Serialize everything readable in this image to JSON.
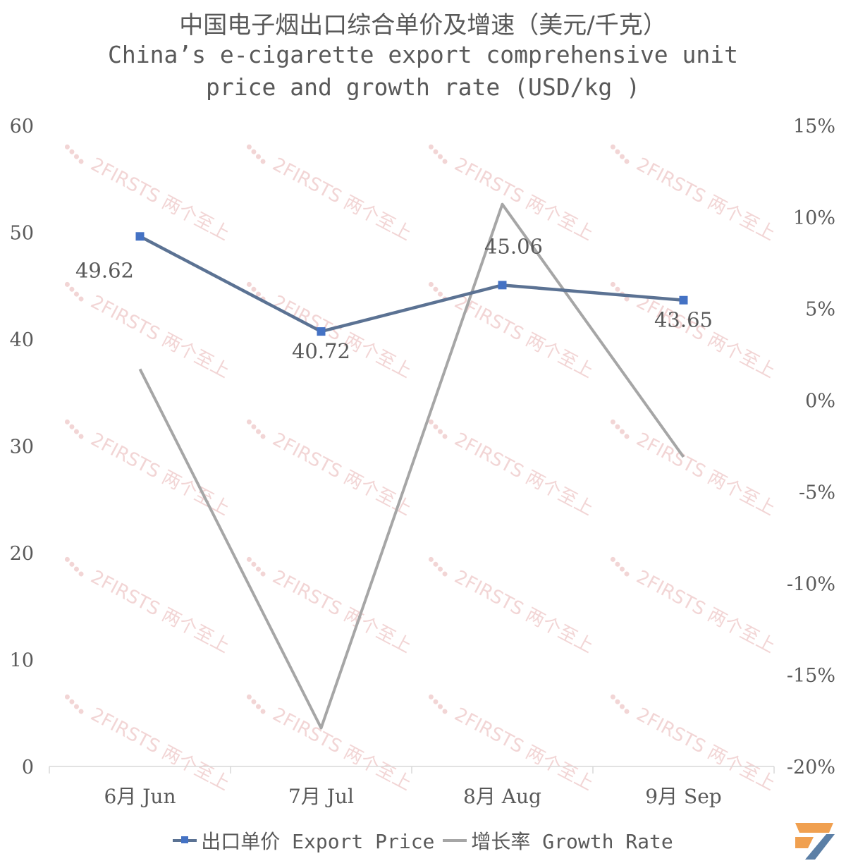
{
  "title": {
    "cn": "中国电子烟出口综合单价及增速（美元/千克）",
    "en_line1": "China’s e-cigarette export comprehensive unit",
    "en_line2": "price and growth rate (USD/kg )"
  },
  "watermark": {
    "text": "2FIRSTS 两个至上"
  },
  "colors": {
    "price": "#4472C4",
    "price_line": "#5B7293",
    "growth": "#A6A6A6",
    "axis": "#D9D9D9",
    "watermark": "#E8B4B4",
    "logo_orange": "#F0A050",
    "logo_blue": "#5B7FA6"
  },
  "chart_data": {
    "type": "line",
    "categories": [
      "6月 Jun",
      "7月 Jul",
      "8月 Aug",
      "9月 Sep"
    ],
    "series": [
      {
        "name": "出口单价 Export Price",
        "axis": "left",
        "values": [
          49.62,
          40.72,
          45.06,
          43.65
        ],
        "labels": [
          "49.62",
          "40.72",
          "45.06",
          "43.65"
        ],
        "marker": "square"
      },
      {
        "name": "增长率 Growth Rate",
        "axis": "right",
        "values": [
          1.7,
          -17.9,
          10.7,
          -3.1
        ],
        "marker": "none"
      }
    ],
    "y_left": {
      "min": 0,
      "max": 60,
      "ticks": [
        "0",
        "10",
        "20",
        "30",
        "40",
        "50",
        "60"
      ]
    },
    "y_right": {
      "min": -20,
      "max": 15,
      "ticks": [
        "-20%",
        "-15%",
        "-10%",
        "-5%",
        "0%",
        "5%",
        "10%",
        "15%"
      ]
    },
    "grid": false,
    "legend_position": "bottom"
  }
}
